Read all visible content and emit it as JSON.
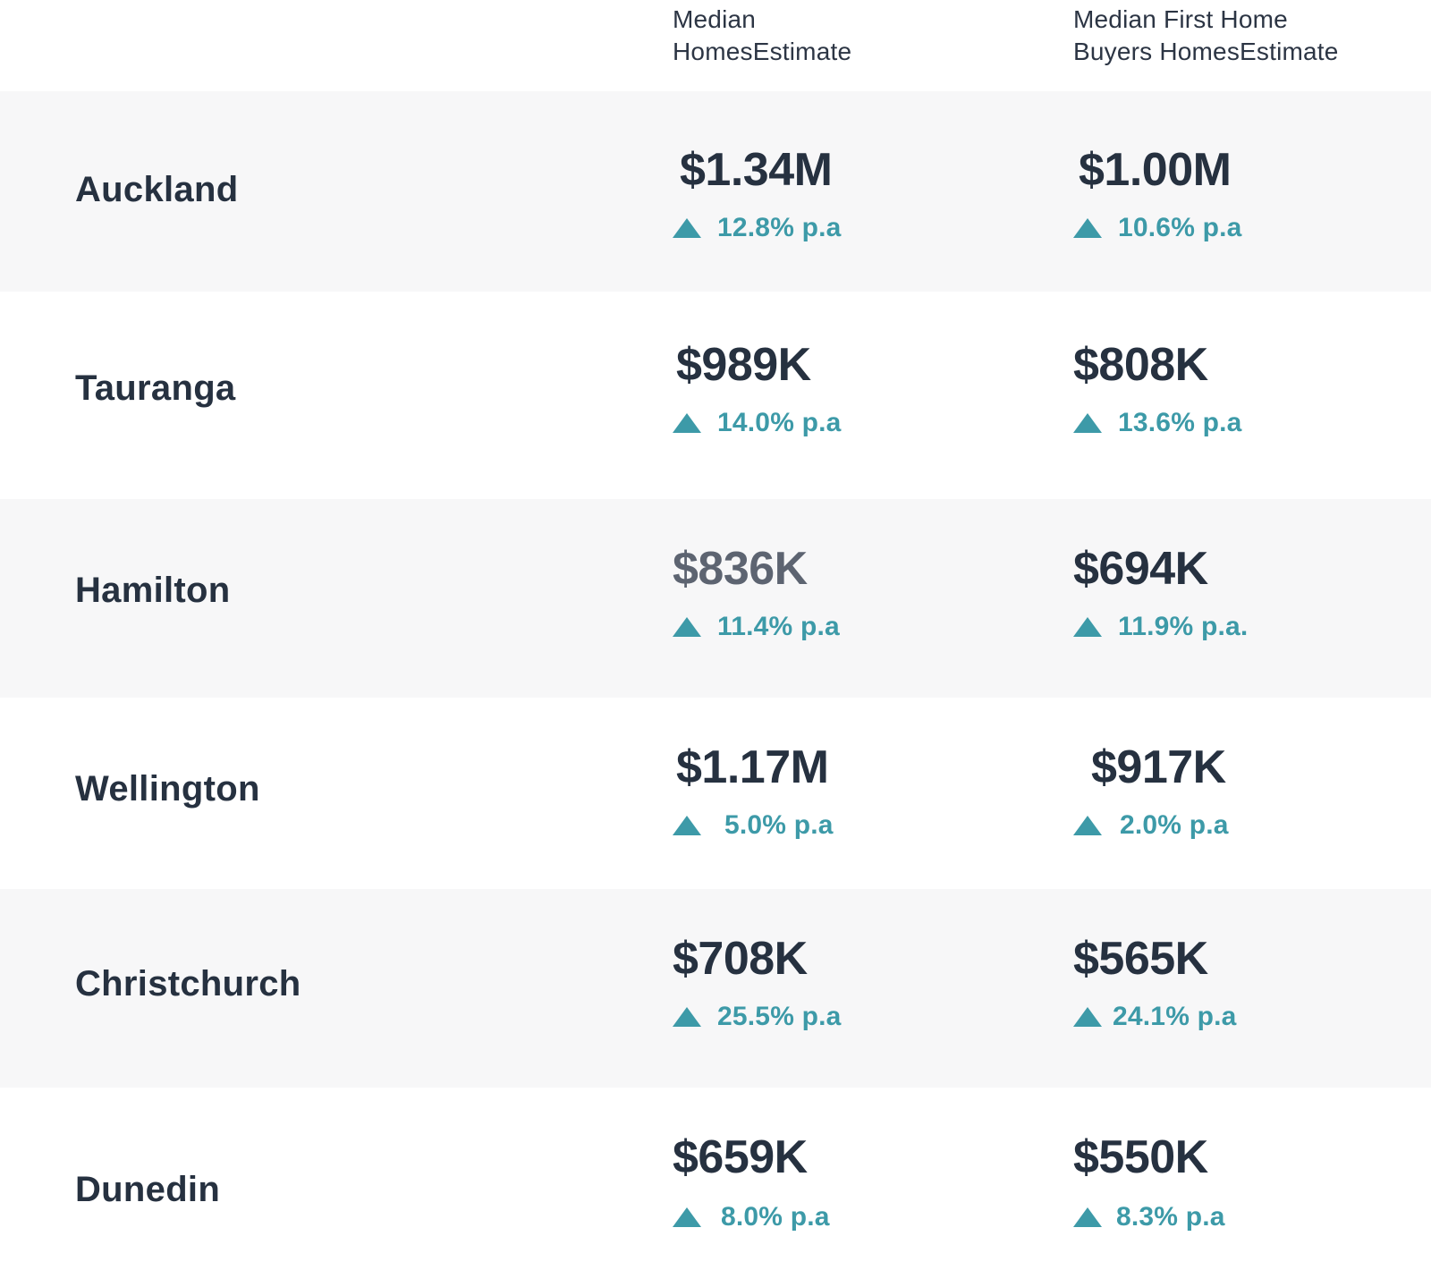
{
  "header": {
    "col1": "Median HomesEstimate",
    "col1_line1": "Median",
    "col1_line2": "HomesEstimate",
    "col2_line1": "Median First Home",
    "col2_line2": "Buyers HomesEstimate"
  },
  "rows": [
    {
      "city": "Auckland",
      "median": "$1.34M",
      "median_growth": "12.8% p.a",
      "fhb": "$1.00M",
      "fhb_growth": "10.6% p.a"
    },
    {
      "city": "Tauranga",
      "median": "$989K",
      "median_growth": "14.0% p.a",
      "fhb": "$808K",
      "fhb_growth": "13.6% p.a"
    },
    {
      "city": "Hamilton",
      "median": "$836K",
      "median_growth": "11.4% p.a",
      "fhb": "$694K",
      "fhb_growth": "11.9% p.a."
    },
    {
      "city": "Wellington",
      "median": "$1.17M",
      "median_growth": "5.0% p.a",
      "fhb": "$917K",
      "fhb_growth": "2.0% p.a"
    },
    {
      "city": "Christchurch",
      "median": "$708K",
      "median_growth": "25.5% p.a",
      "fhb": "$565K",
      "fhb_growth": "24.1% p.a"
    },
    {
      "city": "Dunedin",
      "median": "$659K",
      "median_growth": "8.0% p.a",
      "fhb": "$550K",
      "fhb_growth": "8.3% p.a"
    }
  ],
  "icons": {
    "growth": "triangle-up-icon"
  },
  "colors": {
    "accent": "#3d9aa8",
    "text": "#263140",
    "muted_price": "#5d6471",
    "row_shade": "#f7f7f8"
  }
}
